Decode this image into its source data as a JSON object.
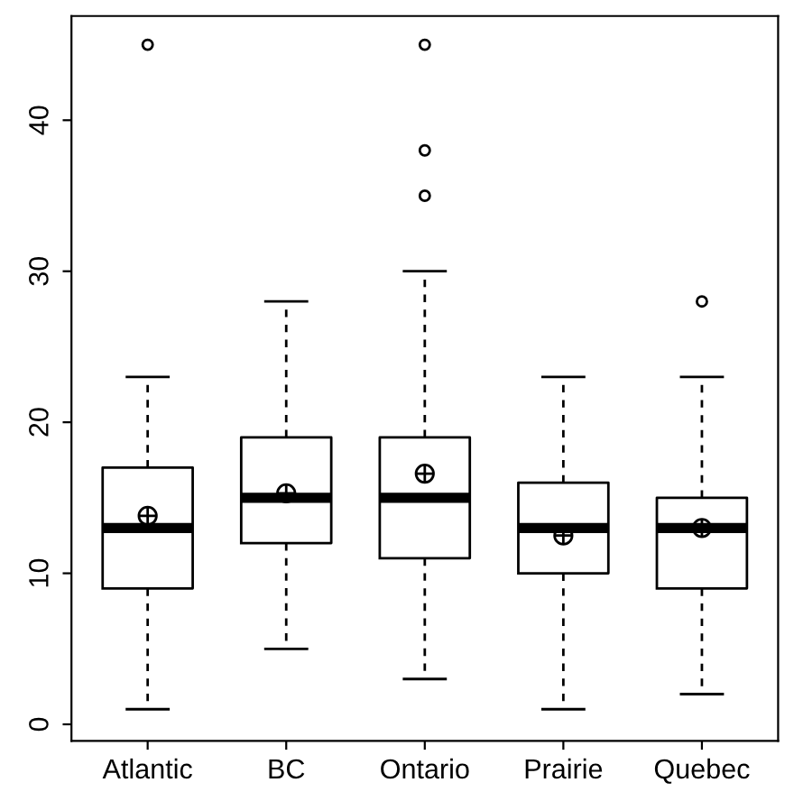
{
  "chart_data": {
    "type": "box",
    "categories": [
      "Atlantic",
      "BC",
      "Ontario",
      "Prairie",
      "Quebec"
    ],
    "boxes": [
      {
        "low": 1,
        "q1": 9,
        "median": 13,
        "q3": 17,
        "high": 23,
        "mean": 13.8,
        "outliers": [
          45
        ]
      },
      {
        "low": 5,
        "q1": 12,
        "median": 15,
        "q3": 19,
        "high": 28,
        "mean": 15.3
      },
      {
        "low": 3,
        "q1": 11,
        "median": 15,
        "q3": 19,
        "high": 30,
        "mean": 16.6,
        "outliers": [
          45,
          38,
          35
        ]
      },
      {
        "low": 1,
        "q1": 10,
        "median": 13,
        "q3": 16,
        "high": 23,
        "mean": 12.5
      },
      {
        "low": 2,
        "q1": 9,
        "median": 13,
        "q3": 15,
        "high": 23,
        "mean": 13,
        "outliers": [
          28
        ]
      }
    ],
    "ylim": [
      -1.1,
      46.9
    ],
    "yticks": [
      0,
      10,
      20,
      30,
      40
    ],
    "grid": false,
    "legend": false
  }
}
